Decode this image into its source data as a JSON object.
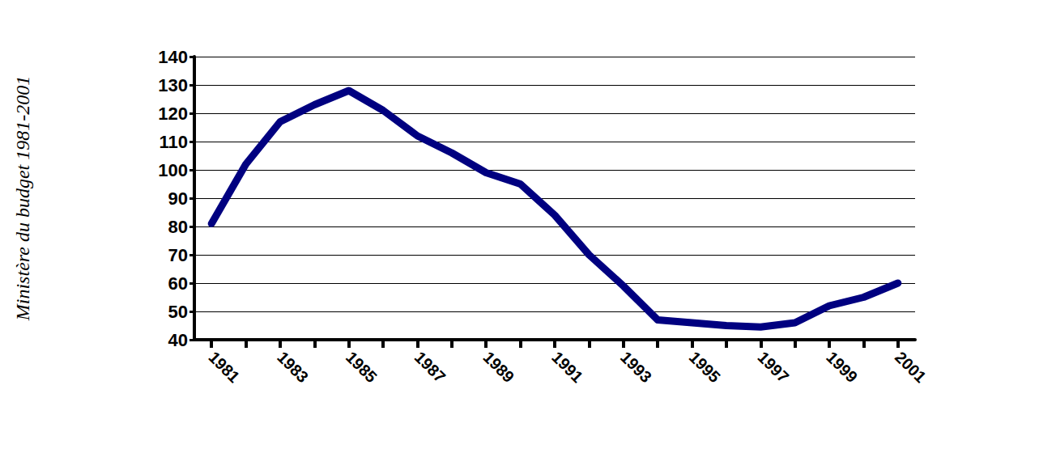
{
  "chart_data": {
    "type": "line",
    "y_label": "Ministère du budget 1981-2001",
    "categories": [
      "1981",
      null,
      "1983",
      null,
      "1985",
      null,
      "1987",
      null,
      "1989",
      null,
      "1991",
      null,
      "1993",
      null,
      "1995",
      null,
      "1997",
      null,
      "1999",
      null,
      "2001"
    ],
    "values": [
      81,
      102,
      117,
      123,
      128,
      121,
      112,
      106,
      99,
      95,
      84,
      70,
      59,
      47,
      46,
      45,
      44.5,
      46,
      52,
      55,
      60
    ],
    "color": "#000080",
    "ylim": [
      40,
      140
    ],
    "yticks": [
      40,
      50,
      60,
      70,
      80,
      90,
      100,
      110,
      120,
      130,
      140
    ],
    "grid": true
  }
}
